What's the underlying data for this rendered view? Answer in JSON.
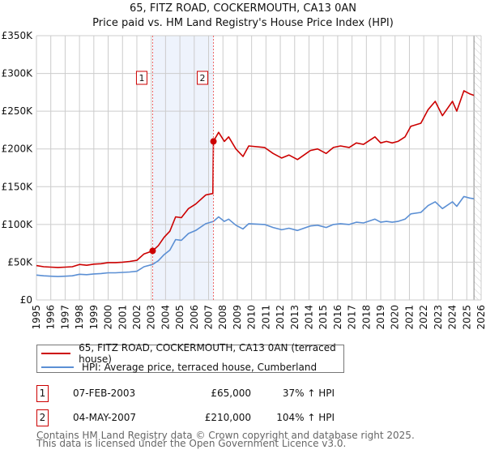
{
  "chart_data": {
    "type": "line",
    "title": "65, FITZ ROAD, COCKERMOUTH, CA13 0AN",
    "subtitle": "Price paid vs. HM Land Registry's House Price Index (HPI)",
    "xlim": [
      1995,
      2026
    ],
    "ylim": [
      0,
      350000
    ],
    "x_ticks": [
      "1995",
      "1996",
      "1997",
      "1998",
      "1999",
      "2000",
      "2001",
      "2002",
      "2003",
      "2004",
      "2005",
      "2006",
      "2007",
      "2008",
      "2009",
      "2010",
      "2011",
      "2012",
      "2013",
      "2014",
      "2015",
      "2016",
      "2017",
      "2018",
      "2019",
      "2020",
      "2021",
      "2022",
      "2023",
      "2024",
      "2025",
      "2026"
    ],
    "y_ticks": [
      {
        "v": 0,
        "label": "£0"
      },
      {
        "v": 50000,
        "label": "£50K"
      },
      {
        "v": 100000,
        "label": "£100K"
      },
      {
        "v": 150000,
        "label": "£150K"
      },
      {
        "v": 200000,
        "label": "£200K"
      },
      {
        "v": 250000,
        "label": "£250K"
      },
      {
        "v": 300000,
        "label": "£300K"
      },
      {
        "v": 350000,
        "label": "£350K"
      }
    ],
    "grid": true,
    "series": [
      {
        "name": "65, FITZ ROAD, COCKERMOUTH, CA13 0AN (terraced house)",
        "color": "#cc0000",
        "points": [
          [
            1995,
            45.5
          ],
          [
            1995.5,
            44
          ],
          [
            1996,
            43.5
          ],
          [
            1996.5,
            43
          ],
          [
            1997,
            43.5
          ],
          [
            1997.5,
            44
          ],
          [
            1998,
            47
          ],
          [
            1998.5,
            46
          ],
          [
            1999,
            47.5
          ],
          [
            1999.5,
            48
          ],
          [
            2000,
            49.5
          ],
          [
            2000.5,
            49.5
          ],
          [
            2001,
            50
          ],
          [
            2001.5,
            51
          ],
          [
            2002,
            52.5
          ],
          [
            2002.5,
            61
          ],
          [
            2003.1,
            65
          ],
          [
            2003.5,
            72
          ],
          [
            2003.9,
            83
          ],
          [
            2004.3,
            91
          ],
          [
            2004.7,
            110
          ],
          [
            2005.1,
            109
          ],
          [
            2005.6,
            121
          ],
          [
            2006.1,
            127
          ],
          [
            2006.8,
            139
          ],
          [
            2007.3,
            141
          ],
          [
            2007.34,
            210
          ],
          [
            2007.7,
            222
          ],
          [
            2008.1,
            210
          ],
          [
            2008.4,
            216
          ],
          [
            2008.9,
            200
          ],
          [
            2009.4,
            190
          ],
          [
            2009.8,
            204
          ],
          [
            2010.9,
            202
          ],
          [
            2011.5,
            194
          ],
          [
            2012.1,
            188
          ],
          [
            2012.6,
            192
          ],
          [
            2013.2,
            186
          ],
          [
            2014.1,
            198
          ],
          [
            2014.6,
            200
          ],
          [
            2015.2,
            194
          ],
          [
            2015.7,
            202
          ],
          [
            2016.2,
            204
          ],
          [
            2016.8,
            202
          ],
          [
            2017.3,
            208
          ],
          [
            2017.8,
            206
          ],
          [
            2018.6,
            216
          ],
          [
            2019.0,
            208
          ],
          [
            2019.4,
            210
          ],
          [
            2019.8,
            208
          ],
          [
            2020.2,
            210
          ],
          [
            2020.7,
            216
          ],
          [
            2021.1,
            230
          ],
          [
            2021.8,
            234
          ],
          [
            2022.3,
            252
          ],
          [
            2022.8,
            263
          ],
          [
            2023.3,
            244
          ],
          [
            2024.0,
            263
          ],
          [
            2024.3,
            250
          ],
          [
            2024.8,
            277
          ],
          [
            2025.2,
            273
          ],
          [
            2025.5,
            271
          ]
        ]
      },
      {
        "name": "HPI: Average price, terraced house, Cumberland",
        "color": "#5b8fd4",
        "points": [
          [
            1995,
            33
          ],
          [
            1995.5,
            32
          ],
          [
            1996,
            31.5
          ],
          [
            1996.5,
            31
          ],
          [
            1997,
            31.5
          ],
          [
            1997.5,
            32
          ],
          [
            1998,
            34
          ],
          [
            1998.5,
            33.5
          ],
          [
            1999,
            34.5
          ],
          [
            1999.5,
            35
          ],
          [
            2000,
            36
          ],
          [
            2000.5,
            36
          ],
          [
            2001,
            36.5
          ],
          [
            2001.5,
            37
          ],
          [
            2002,
            38
          ],
          [
            2002.5,
            44
          ],
          [
            2003.1,
            47
          ],
          [
            2003.5,
            52
          ],
          [
            2003.9,
            60
          ],
          [
            2004.3,
            66
          ],
          [
            2004.7,
            80
          ],
          [
            2005.1,
            79
          ],
          [
            2005.6,
            88
          ],
          [
            2006.1,
            92
          ],
          [
            2006.8,
            101
          ],
          [
            2007.34,
            104
          ],
          [
            2007.7,
            110
          ],
          [
            2008.1,
            104
          ],
          [
            2008.4,
            107
          ],
          [
            2008.9,
            99
          ],
          [
            2009.4,
            94
          ],
          [
            2009.8,
            101
          ],
          [
            2010.9,
            100
          ],
          [
            2011.5,
            96
          ],
          [
            2012.1,
            93
          ],
          [
            2012.6,
            95
          ],
          [
            2013.2,
            92
          ],
          [
            2014.1,
            98
          ],
          [
            2014.6,
            99
          ],
          [
            2015.2,
            96
          ],
          [
            2015.7,
            100
          ],
          [
            2016.2,
            101
          ],
          [
            2016.8,
            100
          ],
          [
            2017.3,
            103
          ],
          [
            2017.8,
            102
          ],
          [
            2018.6,
            107
          ],
          [
            2019.0,
            103
          ],
          [
            2019.4,
            104
          ],
          [
            2019.8,
            103
          ],
          [
            2020.2,
            104
          ],
          [
            2020.7,
            107
          ],
          [
            2021.1,
            114
          ],
          [
            2021.8,
            116
          ],
          [
            2022.3,
            125
          ],
          [
            2022.8,
            130
          ],
          [
            2023.3,
            121
          ],
          [
            2024.0,
            130
          ],
          [
            2024.3,
            124
          ],
          [
            2024.8,
            137
          ],
          [
            2025.2,
            135
          ],
          [
            2025.5,
            134
          ]
        ]
      }
    ],
    "series_value_unit": "thousand GBP",
    "sales": [
      {
        "label": "1",
        "x": 2003.1,
        "y": 65
      },
      {
        "label": "2",
        "x": 2007.34,
        "y": 210
      }
    ],
    "shaded_range": [
      2003.1,
      2007.34
    ],
    "forecast_hatch_from": 2025.5
  },
  "legend": {
    "property": "65, FITZ ROAD, COCKERMOUTH, CA13 0AN (terraced house)",
    "hpi": "HPI: Average price, terraced house, Cumberland"
  },
  "transactions": [
    {
      "num": "1",
      "date": "07-FEB-2003",
      "price": "£65,000",
      "hpi": "37% ↑ HPI"
    },
    {
      "num": "2",
      "date": "04-MAY-2007",
      "price": "£210,000",
      "hpi": "104% ↑ HPI"
    }
  ],
  "footer": {
    "line1": "Contains HM Land Registry data © Crown copyright and database right 2025.",
    "line2": "This data is licensed under the Open Government Licence v3.0."
  }
}
